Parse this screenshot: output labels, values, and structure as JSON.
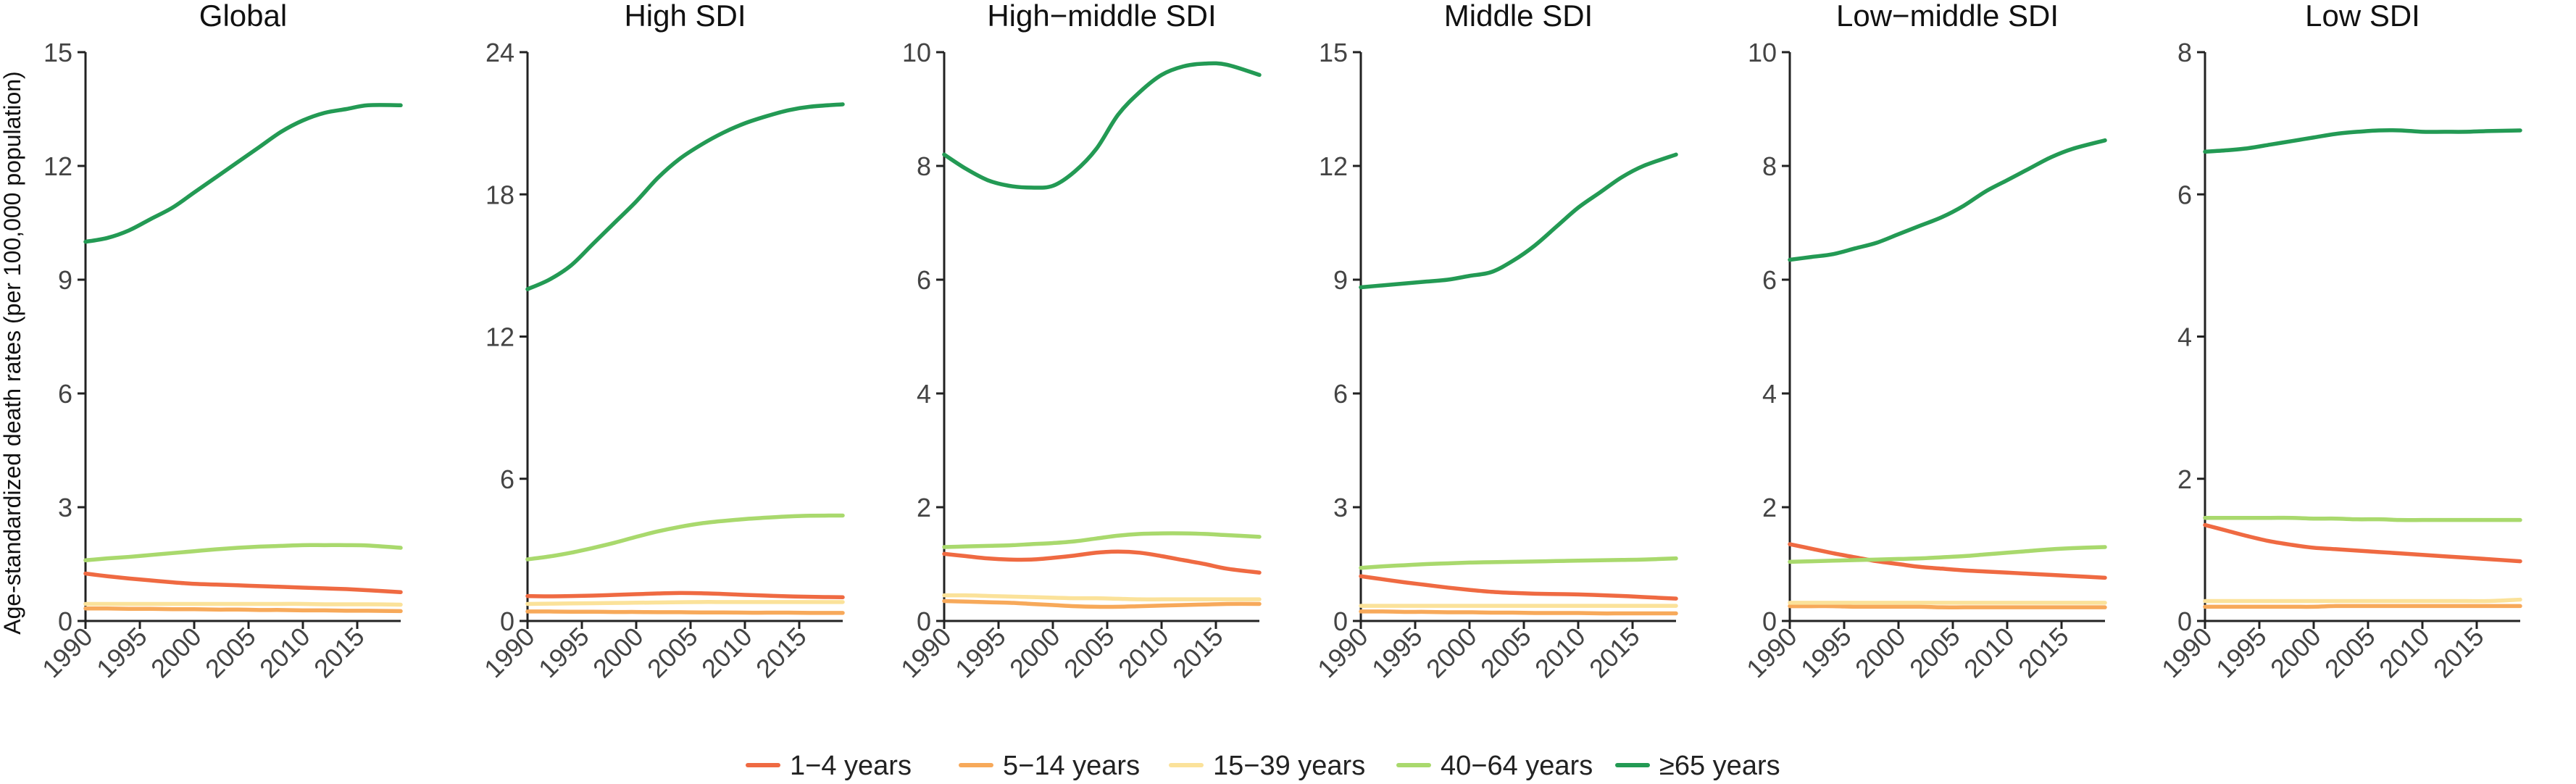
{
  "chart_data": {
    "type": "line",
    "ylabel": "Age-standardized death rates (per 100,000 population)",
    "x": [
      1990,
      1992,
      1994,
      1996,
      1998,
      2000,
      2002,
      2004,
      2006,
      2008,
      2010,
      2012,
      2014,
      2016,
      2019
    ],
    "xticks": [
      1990,
      1995,
      2000,
      2005,
      2010,
      2015
    ],
    "series_meta": [
      {
        "name": "1−4 years",
        "color": "#ef6a42"
      },
      {
        "name": "5−14 years",
        "color": "#f7a95a"
      },
      {
        "name": "15−39 years",
        "color": "#fbe29a"
      },
      {
        "name": "40−64 years",
        "color": "#a9d96d"
      },
      {
        "name": "≥65 years",
        "color": "#239a54"
      }
    ],
    "panels": [
      {
        "title": "Global",
        "ylim": [
          0,
          15
        ],
        "yticks": [
          0,
          3,
          6,
          9,
          12,
          15
        ],
        "series": [
          {
            "name": "1−4 years",
            "values": [
              1.25,
              1.18,
              1.12,
              1.07,
              1.02,
              0.98,
              0.96,
              0.94,
              0.92,
              0.9,
              0.88,
              0.86,
              0.84,
              0.81,
              0.76
            ]
          },
          {
            "name": "5−14 years",
            "values": [
              0.33,
              0.33,
              0.32,
              0.32,
              0.31,
              0.31,
              0.3,
              0.3,
              0.29,
              0.29,
              0.28,
              0.28,
              0.27,
              0.27,
              0.26
            ]
          },
          {
            "name": "15−39 years",
            "values": [
              0.45,
              0.45,
              0.45,
              0.45,
              0.45,
              0.45,
              0.45,
              0.45,
              0.45,
              0.45,
              0.45,
              0.44,
              0.44,
              0.44,
              0.43
            ]
          },
          {
            "name": "40−64 years",
            "values": [
              1.6,
              1.65,
              1.69,
              1.74,
              1.79,
              1.84,
              1.89,
              1.93,
              1.96,
              1.98,
              2.0,
              2.0,
              2.0,
              1.99,
              1.93
            ]
          },
          {
            "name": "≥65 years",
            "values": [
              10.0,
              10.1,
              10.3,
              10.6,
              10.9,
              11.3,
              11.7,
              12.1,
              12.5,
              12.9,
              13.2,
              13.4,
              13.5,
              13.6,
              13.6
            ]
          }
        ]
      },
      {
        "title": "High SDI",
        "ylim": [
          0,
          24
        ],
        "yticks": [
          0,
          6,
          12,
          18,
          24
        ],
        "series": [
          {
            "name": "1−4 years",
            "values": [
              1.05,
              1.04,
              1.05,
              1.07,
              1.1,
              1.13,
              1.16,
              1.18,
              1.17,
              1.14,
              1.1,
              1.07,
              1.04,
              1.02,
              1.0
            ]
          },
          {
            "name": "5−14 years",
            "values": [
              0.4,
              0.4,
              0.39,
              0.39,
              0.38,
              0.38,
              0.37,
              0.37,
              0.36,
              0.36,
              0.35,
              0.35,
              0.35,
              0.34,
              0.34
            ]
          },
          {
            "name": "15−39 years",
            "values": [
              0.72,
              0.73,
              0.74,
              0.75,
              0.76,
              0.77,
              0.78,
              0.79,
              0.8,
              0.8,
              0.8,
              0.8,
              0.8,
              0.8,
              0.8
            ]
          },
          {
            "name": "40−64 years",
            "values": [
              2.6,
              2.72,
              2.88,
              3.08,
              3.3,
              3.55,
              3.78,
              3.97,
              4.12,
              4.22,
              4.3,
              4.36,
              4.41,
              4.44,
              4.45
            ]
          },
          {
            "name": "≥65 years",
            "values": [
              14.0,
              14.4,
              15.0,
              15.9,
              16.8,
              17.7,
              18.7,
              19.5,
              20.1,
              20.6,
              21.0,
              21.3,
              21.55,
              21.7,
              21.8
            ]
          }
        ]
      },
      {
        "title": "High−middle SDI",
        "ylim": [
          0,
          10
        ],
        "yticks": [
          0,
          2,
          4,
          6,
          8,
          10
        ],
        "series": [
          {
            "name": "1−4 years",
            "values": [
              1.18,
              1.14,
              1.1,
              1.08,
              1.08,
              1.11,
              1.15,
              1.2,
              1.22,
              1.2,
              1.14,
              1.07,
              1.0,
              0.92,
              0.85
            ]
          },
          {
            "name": "5−14 years",
            "values": [
              0.35,
              0.34,
              0.33,
              0.32,
              0.3,
              0.28,
              0.26,
              0.25,
              0.25,
              0.26,
              0.27,
              0.28,
              0.29,
              0.3,
              0.3
            ]
          },
          {
            "name": "15−39 years",
            "values": [
              0.45,
              0.45,
              0.44,
              0.43,
              0.42,
              0.41,
              0.4,
              0.4,
              0.39,
              0.38,
              0.38,
              0.38,
              0.38,
              0.38,
              0.38
            ]
          },
          {
            "name": "40−64 years",
            "values": [
              1.3,
              1.31,
              1.32,
              1.33,
              1.35,
              1.37,
              1.4,
              1.45,
              1.5,
              1.53,
              1.54,
              1.54,
              1.53,
              1.51,
              1.48
            ]
          },
          {
            "name": "≥65 years",
            "values": [
              8.2,
              7.95,
              7.75,
              7.65,
              7.62,
              7.65,
              7.9,
              8.3,
              8.9,
              9.3,
              9.6,
              9.75,
              9.8,
              9.78,
              9.6
            ]
          }
        ]
      },
      {
        "title": "Middle SDI",
        "ylim": [
          0,
          15
        ],
        "yticks": [
          0,
          3,
          6,
          9,
          12,
          15
        ],
        "series": [
          {
            "name": "1−4 years",
            "values": [
              1.18,
              1.1,
              1.02,
              0.95,
              0.88,
              0.82,
              0.77,
              0.74,
              0.72,
              0.71,
              0.7,
              0.68,
              0.66,
              0.63,
              0.59
            ]
          },
          {
            "name": "5−14 years",
            "values": [
              0.25,
              0.25,
              0.24,
              0.24,
              0.23,
              0.23,
              0.22,
              0.22,
              0.21,
              0.21,
              0.21,
              0.2,
              0.2,
              0.2,
              0.2
            ]
          },
          {
            "name": "15−39 years",
            "values": [
              0.4,
              0.4,
              0.4,
              0.4,
              0.4,
              0.4,
              0.4,
              0.4,
              0.4,
              0.4,
              0.4,
              0.4,
              0.4,
              0.4,
              0.4
            ]
          },
          {
            "name": "40−64 years",
            "values": [
              1.4,
              1.44,
              1.47,
              1.5,
              1.52,
              1.54,
              1.55,
              1.56,
              1.57,
              1.58,
              1.59,
              1.6,
              1.61,
              1.62,
              1.65
            ]
          },
          {
            "name": "≥65 years",
            "values": [
              8.8,
              8.85,
              8.9,
              8.95,
              9.0,
              9.1,
              9.2,
              9.5,
              9.9,
              10.4,
              10.9,
              11.3,
              11.7,
              12.0,
              12.3
            ]
          }
        ]
      },
      {
        "title": "Low−middle SDI",
        "ylim": [
          0,
          10
        ],
        "yticks": [
          0,
          2,
          4,
          6,
          8,
          10
        ],
        "series": [
          {
            "name": "1−4 years",
            "values": [
              1.35,
              1.27,
              1.19,
              1.12,
              1.05,
              1.0,
              0.95,
              0.92,
              0.89,
              0.87,
              0.85,
              0.83,
              0.81,
              0.79,
              0.76
            ]
          },
          {
            "name": "5−14 years",
            "values": [
              0.26,
              0.26,
              0.26,
              0.25,
              0.25,
              0.25,
              0.25,
              0.24,
              0.24,
              0.24,
              0.24,
              0.24,
              0.24,
              0.24,
              0.24
            ]
          },
          {
            "name": "15−39 years",
            "values": [
              0.32,
              0.32,
              0.32,
              0.32,
              0.32,
              0.32,
              0.32,
              0.32,
              0.32,
              0.32,
              0.32,
              0.32,
              0.32,
              0.32,
              0.32
            ]
          },
          {
            "name": "40−64 years",
            "values": [
              1.04,
              1.05,
              1.06,
              1.07,
              1.08,
              1.09,
              1.1,
              1.12,
              1.14,
              1.17,
              1.2,
              1.23,
              1.26,
              1.28,
              1.3
            ]
          },
          {
            "name": "≥65 years",
            "values": [
              6.35,
              6.4,
              6.45,
              6.55,
              6.65,
              6.8,
              6.95,
              7.1,
              7.3,
              7.55,
              7.75,
              7.95,
              8.15,
              8.3,
              8.45
            ]
          }
        ]
      },
      {
        "title": "Low SDI",
        "ylim": [
          0,
          8
        ],
        "yticks": [
          0,
          2,
          4,
          6,
          8
        ],
        "series": [
          {
            "name": "1−4 years",
            "values": [
              1.35,
              1.27,
              1.19,
              1.12,
              1.07,
              1.03,
              1.01,
              0.99,
              0.97,
              0.95,
              0.93,
              0.91,
              0.89,
              0.87,
              0.84
            ]
          },
          {
            "name": "5−14 years",
            "values": [
              0.2,
              0.2,
              0.2,
              0.2,
              0.2,
              0.2,
              0.21,
              0.21,
              0.21,
              0.21,
              0.21,
              0.21,
              0.21,
              0.21,
              0.21
            ]
          },
          {
            "name": "15−39 years",
            "values": [
              0.28,
              0.28,
              0.28,
              0.28,
              0.28,
              0.28,
              0.28,
              0.28,
              0.28,
              0.28,
              0.28,
              0.28,
              0.28,
              0.28,
              0.3
            ]
          },
          {
            "name": "40−64 years",
            "values": [
              1.45,
              1.45,
              1.45,
              1.45,
              1.45,
              1.44,
              1.44,
              1.43,
              1.43,
              1.42,
              1.42,
              1.42,
              1.42,
              1.42,
              1.42
            ]
          },
          {
            "name": "≥65 years",
            "values": [
              6.6,
              6.62,
              6.65,
              6.7,
              6.75,
              6.8,
              6.85,
              6.88,
              6.9,
              6.9,
              6.88,
              6.88,
              6.88,
              6.89,
              6.9
            ]
          }
        ]
      }
    ]
  }
}
